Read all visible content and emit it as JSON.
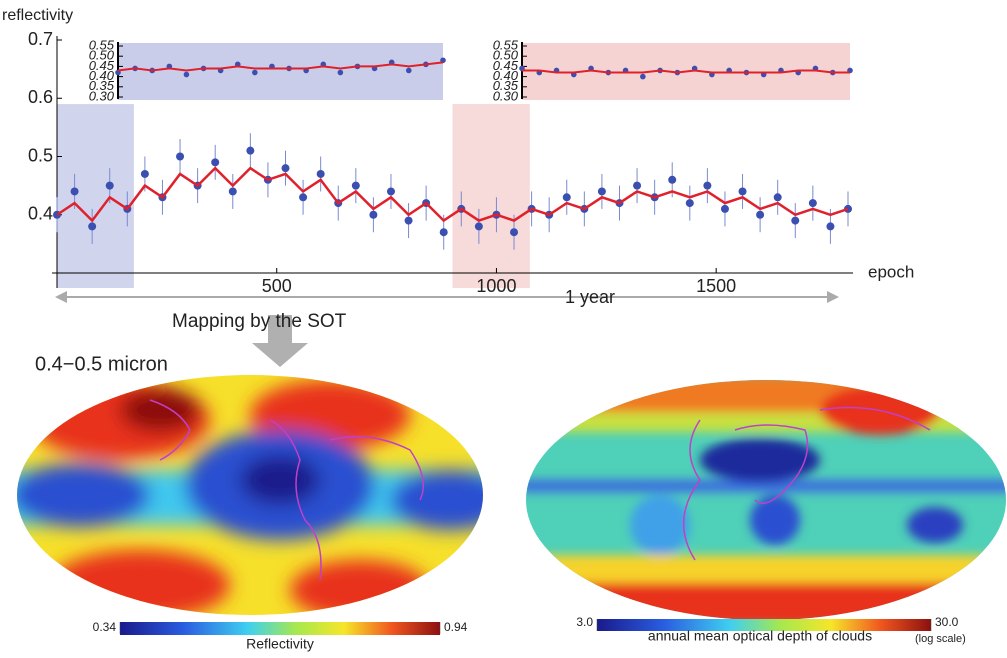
{
  "chart_data": [
    {
      "type": "scatter",
      "ylabel": "reflectivity",
      "xlabel": "epoch",
      "xlim": [
        0,
        1800
      ],
      "ylim": [
        0.3,
        0.7
      ],
      "xticks": [
        500,
        1000,
        1500
      ],
      "yticks": [
        0.4,
        0.5,
        0.6,
        0.7
      ],
      "highlights": [
        {
          "xrange": [
            0,
            175
          ],
          "color": "#c9cdea"
        },
        {
          "xrange": [
            900,
            1076
          ],
          "color": "#f6d3d3"
        }
      ],
      "annotations": [
        "1 year",
        "Mapping by the SOT"
      ],
      "x": [
        0,
        40,
        80,
        120,
        160,
        200,
        240,
        280,
        320,
        360,
        400,
        440,
        480,
        520,
        560,
        600,
        640,
        680,
        720,
        760,
        800,
        840,
        880,
        920,
        960,
        1000,
        1040,
        1080,
        1120,
        1160,
        1200,
        1240,
        1280,
        1320,
        1360,
        1400,
        1440,
        1480,
        1520,
        1560,
        1600,
        1640,
        1680,
        1720,
        1760,
        1800
      ],
      "series": [
        {
          "kind": "points",
          "color": "#3a4fb0",
          "values": [
            0.4,
            0.44,
            0.38,
            0.45,
            0.41,
            0.47,
            0.43,
            0.5,
            0.45,
            0.49,
            0.44,
            0.51,
            0.46,
            0.48,
            0.43,
            0.47,
            0.42,
            0.45,
            0.4,
            0.44,
            0.39,
            0.42,
            0.37,
            0.41,
            0.38,
            0.4,
            0.37,
            0.41,
            0.4,
            0.43,
            0.41,
            0.44,
            0.42,
            0.45,
            0.43,
            0.46,
            0.42,
            0.45,
            0.41,
            0.44,
            0.4,
            0.43,
            0.39,
            0.42,
            0.38,
            0.41
          ],
          "errors": [
            0.03,
            0.03,
            0.03,
            0.03,
            0.03,
            0.03,
            0.03,
            0.03,
            0.03,
            0.03,
            0.03,
            0.03,
            0.03,
            0.03,
            0.03,
            0.03,
            0.03,
            0.03,
            0.03,
            0.03,
            0.03,
            0.03,
            0.03,
            0.03,
            0.03,
            0.03,
            0.03,
            0.03,
            0.03,
            0.03,
            0.03,
            0.03,
            0.03,
            0.03,
            0.03,
            0.03,
            0.03,
            0.03,
            0.03,
            0.03,
            0.03,
            0.03,
            0.03,
            0.03,
            0.03,
            0.03
          ]
        },
        {
          "kind": "line",
          "color": "#e0202a",
          "values": [
            0.4,
            0.42,
            0.39,
            0.43,
            0.41,
            0.45,
            0.43,
            0.47,
            0.45,
            0.48,
            0.45,
            0.48,
            0.46,
            0.47,
            0.44,
            0.46,
            0.42,
            0.44,
            0.41,
            0.43,
            0.4,
            0.42,
            0.39,
            0.41,
            0.39,
            0.4,
            0.39,
            0.41,
            0.4,
            0.42,
            0.41,
            0.43,
            0.42,
            0.44,
            0.43,
            0.44,
            0.43,
            0.44,
            0.42,
            0.43,
            0.41,
            0.42,
            0.4,
            0.41,
            0.4,
            0.41
          ]
        }
      ]
    },
    {
      "type": "inset",
      "background": "#c9cdea",
      "xlim": [
        0,
        190
      ],
      "ylim": [
        0.3,
        0.55
      ],
      "yticks": [
        0.55,
        {
          "value": 0.5,
          "label": "0.50"
        },
        0.45,
        {
          "value": 0.4,
          "label": "0.40"
        },
        0.35,
        {
          "value": 0.3,
          "label": "0.30"
        }
      ],
      "x": [
        0,
        10,
        20,
        30,
        40,
        50,
        60,
        70,
        80,
        90,
        100,
        110,
        120,
        130,
        140,
        150,
        160,
        170,
        180,
        190
      ],
      "series": [
        {
          "kind": "points",
          "color": "#3a4fb0",
          "values": [
            0.42,
            0.44,
            0.43,
            0.45,
            0.41,
            0.44,
            0.43,
            0.46,
            0.42,
            0.45,
            0.44,
            0.43,
            0.46,
            0.42,
            0.45,
            0.44,
            0.47,
            0.43,
            0.46,
            0.48
          ]
        },
        {
          "kind": "line",
          "color": "#e0202a",
          "values": [
            0.43,
            0.44,
            0.43,
            0.44,
            0.43,
            0.44,
            0.44,
            0.45,
            0.44,
            0.44,
            0.44,
            0.44,
            0.45,
            0.44,
            0.45,
            0.45,
            0.46,
            0.45,
            0.46,
            0.47
          ]
        }
      ]
    },
    {
      "type": "inset",
      "background": "#f6d3d3",
      "xlim": [
        920,
        1110
      ],
      "ylim": [
        0.3,
        0.55
      ],
      "yticks": [
        0.55,
        {
          "value": 0.5,
          "label": "0.50"
        },
        0.45,
        {
          "value": 0.4,
          "label": "0.40"
        },
        0.35,
        {
          "value": 0.3,
          "label": "0.30"
        }
      ],
      "x": [
        920,
        930,
        940,
        950,
        960,
        970,
        980,
        990,
        1000,
        1010,
        1020,
        1030,
        1040,
        1050,
        1060,
        1070,
        1080,
        1090,
        1100,
        1110
      ],
      "series": [
        {
          "kind": "points",
          "color": "#3a4fb0",
          "values": [
            0.44,
            0.42,
            0.43,
            0.41,
            0.44,
            0.42,
            0.43,
            0.4,
            0.43,
            0.42,
            0.44,
            0.41,
            0.43,
            0.42,
            0.41,
            0.43,
            0.42,
            0.44,
            0.42,
            0.43
          ]
        },
        {
          "kind": "line",
          "color": "#e0202a",
          "values": [
            0.43,
            0.43,
            0.42,
            0.42,
            0.43,
            0.42,
            0.42,
            0.42,
            0.43,
            0.42,
            0.43,
            0.42,
            0.42,
            0.42,
            0.42,
            0.42,
            0.43,
            0.43,
            0.42,
            0.42
          ]
        }
      ]
    },
    {
      "type": "map",
      "title": "0.4−0.5 micron",
      "cbar_ticks": [
        0.34,
        0.94
      ],
      "cbar_label": "Reflectivity"
    },
    {
      "type": "map",
      "cbar_ticks": [
        {
          "value": 3,
          "label": "3.0"
        },
        {
          "value": 30,
          "label": "30.0"
        }
      ],
      "cbar_label": "annual mean optical depth of clouds",
      "cbar_note": "(log scale)",
      "log": true
    }
  ]
}
